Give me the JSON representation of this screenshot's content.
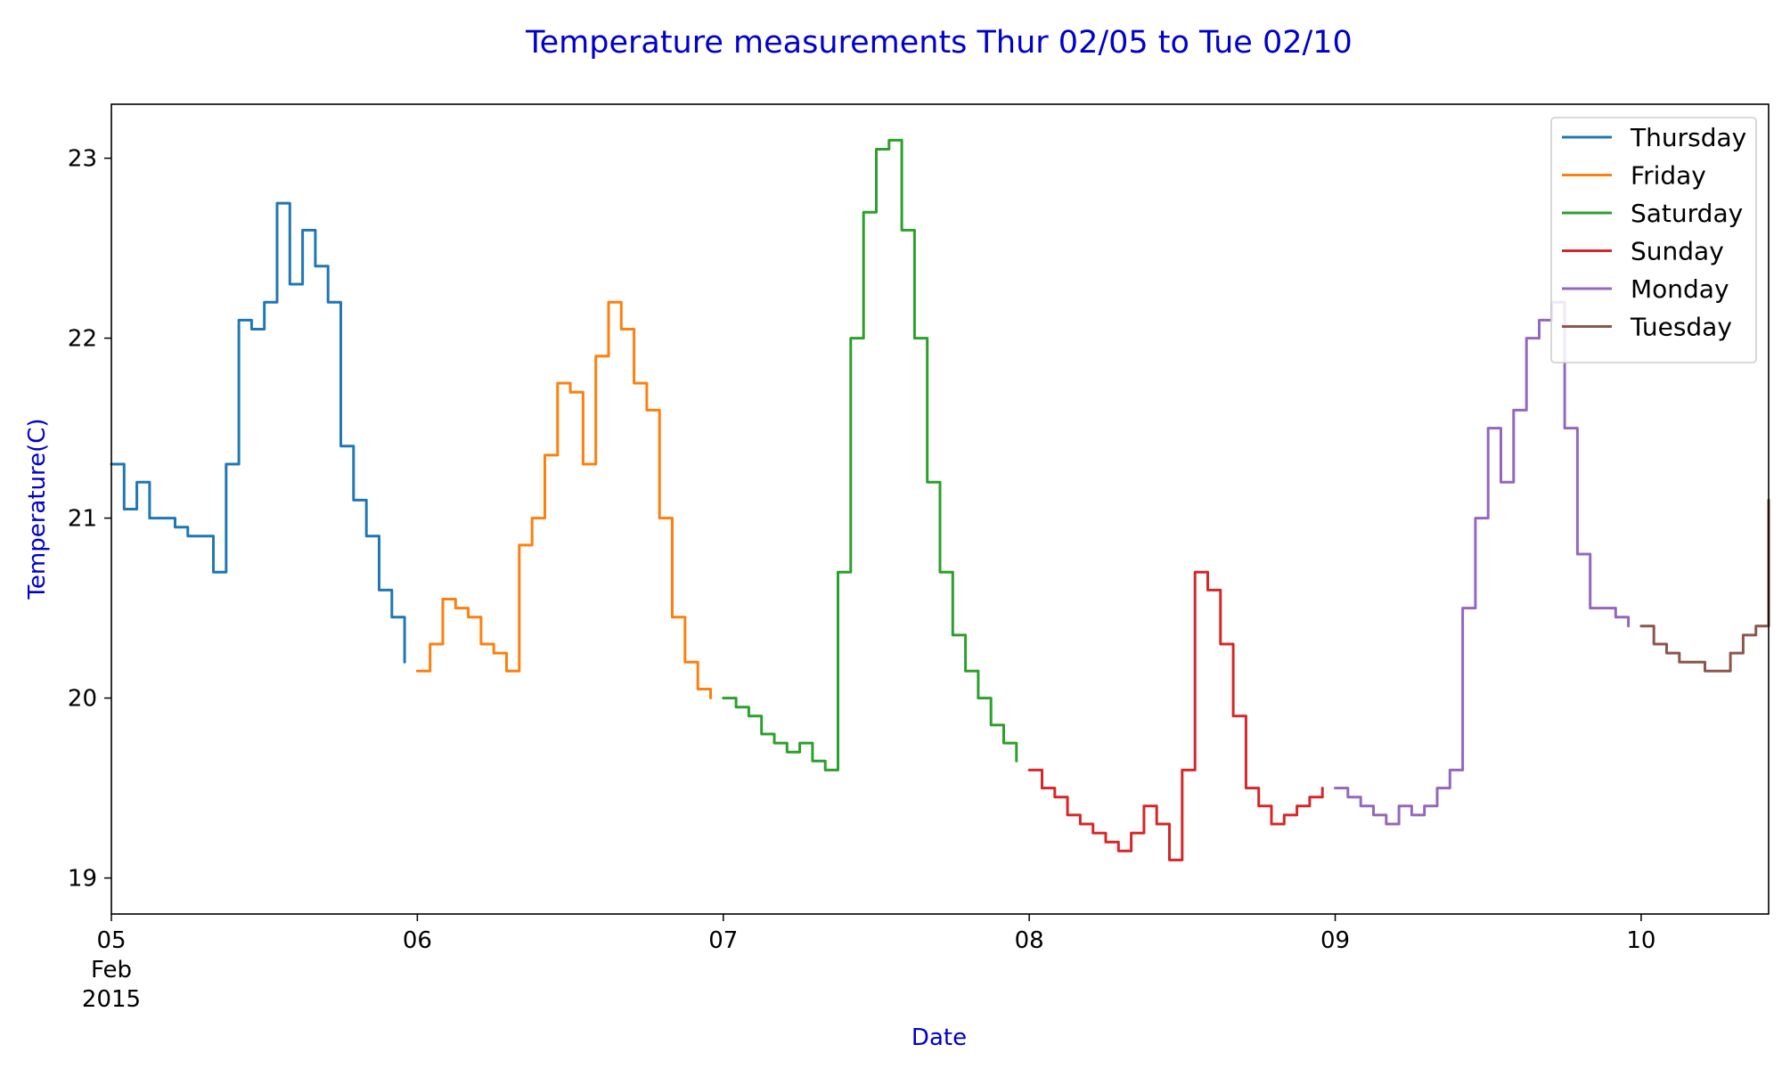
{
  "chart_data": {
    "type": "line",
    "title": "Temperature measurements Thur 02/05 to Tue 02/10",
    "xlabel": "Date",
    "ylabel": "Temperature(C)",
    "xlim": [
      "2015-02-05 00:00",
      "2015-02-10 10:00"
    ],
    "ylim": [
      18.8,
      23.3
    ],
    "y_ticks": [
      19,
      20,
      21,
      22,
      23
    ],
    "x_ticks": [
      {
        "value": "2015-02-05 00:00",
        "lines": [
          "05",
          "Feb",
          "2015"
        ]
      },
      {
        "value": "2015-02-06 00:00",
        "lines": [
          "06"
        ]
      },
      {
        "value": "2015-02-07 00:00",
        "lines": [
          "07"
        ]
      },
      {
        "value": "2015-02-08 00:00",
        "lines": [
          "08"
        ]
      },
      {
        "value": "2015-02-09 00:00",
        "lines": [
          "09"
        ]
      },
      {
        "value": "2015-02-10 00:00",
        "lines": [
          "10"
        ]
      }
    ],
    "legend": "top-right",
    "grid": false,
    "series": [
      {
        "name": "Thursday",
        "color": "#1f77b4",
        "points": [
          [
            "2015-02-05 00:00",
            21.3
          ],
          [
            "2015-02-05 01:00",
            21.05
          ],
          [
            "2015-02-05 02:00",
            21.2
          ],
          [
            "2015-02-05 03:00",
            21.0
          ],
          [
            "2015-02-05 04:00",
            21.0
          ],
          [
            "2015-02-05 05:00",
            20.95
          ],
          [
            "2015-02-05 06:00",
            20.9
          ],
          [
            "2015-02-05 07:00",
            20.9
          ],
          [
            "2015-02-05 08:00",
            20.7
          ],
          [
            "2015-02-05 09:00",
            21.3
          ],
          [
            "2015-02-05 10:00",
            22.1
          ],
          [
            "2015-02-05 11:00",
            22.05
          ],
          [
            "2015-02-05 12:00",
            22.2
          ],
          [
            "2015-02-05 13:00",
            22.75
          ],
          [
            "2015-02-05 14:00",
            22.3
          ],
          [
            "2015-02-05 15:00",
            22.6
          ],
          [
            "2015-02-05 16:00",
            22.4
          ],
          [
            "2015-02-05 17:00",
            22.2
          ],
          [
            "2015-02-05 18:00",
            21.4
          ],
          [
            "2015-02-05 19:00",
            21.1
          ],
          [
            "2015-02-05 20:00",
            20.9
          ],
          [
            "2015-02-05 21:00",
            20.6
          ],
          [
            "2015-02-05 22:00",
            20.45
          ],
          [
            "2015-02-05 23:00",
            20.2
          ]
        ]
      },
      {
        "name": "Friday",
        "color": "#ff7f0e",
        "points": [
          [
            "2015-02-06 00:00",
            20.15
          ],
          [
            "2015-02-06 01:00",
            20.3
          ],
          [
            "2015-02-06 02:00",
            20.55
          ],
          [
            "2015-02-06 03:00",
            20.5
          ],
          [
            "2015-02-06 04:00",
            20.45
          ],
          [
            "2015-02-06 05:00",
            20.3
          ],
          [
            "2015-02-06 06:00",
            20.25
          ],
          [
            "2015-02-06 07:00",
            20.15
          ],
          [
            "2015-02-06 08:00",
            20.85
          ],
          [
            "2015-02-06 09:00",
            21.0
          ],
          [
            "2015-02-06 10:00",
            21.35
          ],
          [
            "2015-02-06 11:00",
            21.75
          ],
          [
            "2015-02-06 12:00",
            21.7
          ],
          [
            "2015-02-06 13:00",
            21.3
          ],
          [
            "2015-02-06 14:00",
            21.9
          ],
          [
            "2015-02-06 15:00",
            22.2
          ],
          [
            "2015-02-06 16:00",
            22.05
          ],
          [
            "2015-02-06 17:00",
            21.75
          ],
          [
            "2015-02-06 18:00",
            21.6
          ],
          [
            "2015-02-06 19:00",
            21.0
          ],
          [
            "2015-02-06 20:00",
            20.45
          ],
          [
            "2015-02-06 21:00",
            20.2
          ],
          [
            "2015-02-06 22:00",
            20.05
          ],
          [
            "2015-02-06 23:00",
            20.0
          ]
        ]
      },
      {
        "name": "Saturday",
        "color": "#2ca02c",
        "points": [
          [
            "2015-02-07 00:00",
            20.0
          ],
          [
            "2015-02-07 01:00",
            19.95
          ],
          [
            "2015-02-07 02:00",
            19.9
          ],
          [
            "2015-02-07 03:00",
            19.8
          ],
          [
            "2015-02-07 04:00",
            19.75
          ],
          [
            "2015-02-07 05:00",
            19.7
          ],
          [
            "2015-02-07 06:00",
            19.75
          ],
          [
            "2015-02-07 07:00",
            19.65
          ],
          [
            "2015-02-07 08:00",
            19.6
          ],
          [
            "2015-02-07 09:00",
            20.7
          ],
          [
            "2015-02-07 10:00",
            22.0
          ],
          [
            "2015-02-07 11:00",
            22.7
          ],
          [
            "2015-02-07 12:00",
            23.05
          ],
          [
            "2015-02-07 13:00",
            23.1
          ],
          [
            "2015-02-07 14:00",
            22.6
          ],
          [
            "2015-02-07 15:00",
            22.0
          ],
          [
            "2015-02-07 16:00",
            21.2
          ],
          [
            "2015-02-07 17:00",
            20.7
          ],
          [
            "2015-02-07 18:00",
            20.35
          ],
          [
            "2015-02-07 19:00",
            20.15
          ],
          [
            "2015-02-07 20:00",
            20.0
          ],
          [
            "2015-02-07 21:00",
            19.85
          ],
          [
            "2015-02-07 22:00",
            19.75
          ],
          [
            "2015-02-07 23:00",
            19.65
          ]
        ]
      },
      {
        "name": "Sunday",
        "color": "#d62728",
        "points": [
          [
            "2015-02-08 00:00",
            19.6
          ],
          [
            "2015-02-08 01:00",
            19.5
          ],
          [
            "2015-02-08 02:00",
            19.45
          ],
          [
            "2015-02-08 03:00",
            19.35
          ],
          [
            "2015-02-08 04:00",
            19.3
          ],
          [
            "2015-02-08 05:00",
            19.25
          ],
          [
            "2015-02-08 06:00",
            19.2
          ],
          [
            "2015-02-08 07:00",
            19.15
          ],
          [
            "2015-02-08 08:00",
            19.25
          ],
          [
            "2015-02-08 09:00",
            19.4
          ],
          [
            "2015-02-08 10:00",
            19.3
          ],
          [
            "2015-02-08 11:00",
            19.1
          ],
          [
            "2015-02-08 12:00",
            19.6
          ],
          [
            "2015-02-08 13:00",
            20.7
          ],
          [
            "2015-02-08 14:00",
            20.6
          ],
          [
            "2015-02-08 15:00",
            20.3
          ],
          [
            "2015-02-08 16:00",
            19.9
          ],
          [
            "2015-02-08 17:00",
            19.5
          ],
          [
            "2015-02-08 18:00",
            19.4
          ],
          [
            "2015-02-08 19:00",
            19.3
          ],
          [
            "2015-02-08 20:00",
            19.35
          ],
          [
            "2015-02-08 21:00",
            19.4
          ],
          [
            "2015-02-08 22:00",
            19.45
          ],
          [
            "2015-02-08 23:00",
            19.5
          ]
        ]
      },
      {
        "name": "Monday",
        "color": "#9467bd",
        "points": [
          [
            "2015-02-09 00:00",
            19.5
          ],
          [
            "2015-02-09 01:00",
            19.45
          ],
          [
            "2015-02-09 02:00",
            19.4
          ],
          [
            "2015-02-09 03:00",
            19.35
          ],
          [
            "2015-02-09 04:00",
            19.3
          ],
          [
            "2015-02-09 05:00",
            19.4
          ],
          [
            "2015-02-09 06:00",
            19.35
          ],
          [
            "2015-02-09 07:00",
            19.4
          ],
          [
            "2015-02-09 08:00",
            19.5
          ],
          [
            "2015-02-09 09:00",
            19.6
          ],
          [
            "2015-02-09 10:00",
            20.5
          ],
          [
            "2015-02-09 11:00",
            21.0
          ],
          [
            "2015-02-09 12:00",
            21.5
          ],
          [
            "2015-02-09 13:00",
            21.2
          ],
          [
            "2015-02-09 14:00",
            21.6
          ],
          [
            "2015-02-09 15:00",
            22.0
          ],
          [
            "2015-02-09 16:00",
            22.1
          ],
          [
            "2015-02-09 17:00",
            22.2
          ],
          [
            "2015-02-09 18:00",
            21.5
          ],
          [
            "2015-02-09 19:00",
            20.8
          ],
          [
            "2015-02-09 20:00",
            20.5
          ],
          [
            "2015-02-09 21:00",
            20.5
          ],
          [
            "2015-02-09 22:00",
            20.45
          ],
          [
            "2015-02-09 23:00",
            20.4
          ]
        ]
      },
      {
        "name": "Tuesday",
        "color": "#8c564b",
        "points": [
          [
            "2015-02-10 00:00",
            20.4
          ],
          [
            "2015-02-10 01:00",
            20.3
          ],
          [
            "2015-02-10 02:00",
            20.25
          ],
          [
            "2015-02-10 03:00",
            20.2
          ],
          [
            "2015-02-10 04:00",
            20.2
          ],
          [
            "2015-02-10 05:00",
            20.15
          ],
          [
            "2015-02-10 06:00",
            20.15
          ],
          [
            "2015-02-10 07:00",
            20.25
          ],
          [
            "2015-02-10 08:00",
            20.35
          ],
          [
            "2015-02-10 09:00",
            20.4
          ],
          [
            "2015-02-10 10:00",
            21.1
          ]
        ]
      }
    ]
  }
}
